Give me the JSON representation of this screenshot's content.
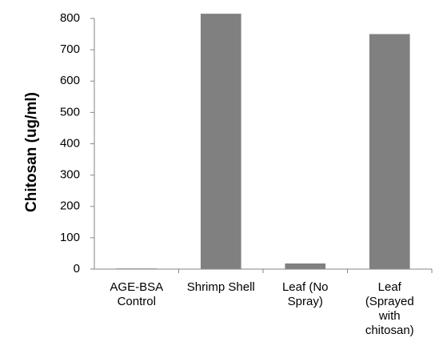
{
  "chart_data": {
    "type": "bar",
    "y_label": "Chitosan (ug/ml)",
    "categories": [
      "AGE-BSA Control",
      "Shrimp Shell",
      "Leaf (No Spray)",
      "Leaf (Sprayed with chitosan)"
    ],
    "values": [
      2,
      815,
      18,
      750
    ],
    "color": "#808080",
    "ylim": [
      0,
      800
    ],
    "yticks": [
      0,
      100,
      200,
      300,
      400,
      500,
      600,
      700,
      800
    ],
    "grid": false
  }
}
